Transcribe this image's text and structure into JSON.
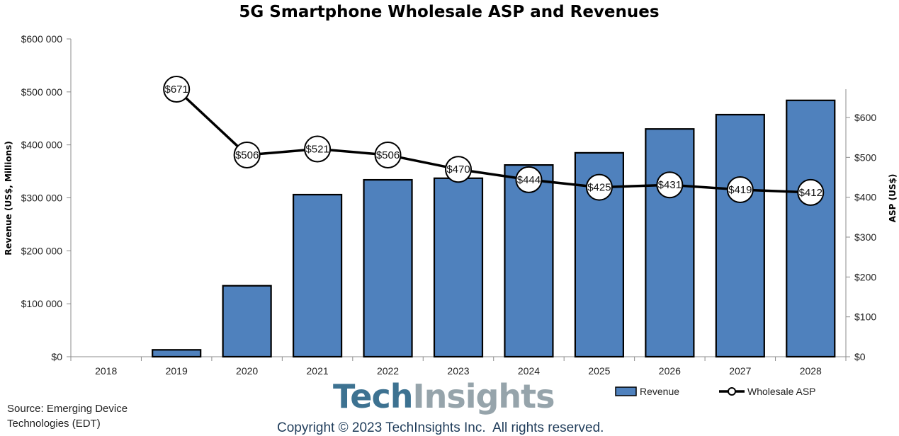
{
  "chart_data": {
    "type": "bar+line",
    "title": "5G Smartphone Wholesale ASP and Revenues",
    "categories": [
      "2018",
      "2019",
      "2020",
      "2021",
      "2022",
      "2023",
      "2024",
      "2025",
      "2026",
      "2027",
      "2028"
    ],
    "series": [
      {
        "name": "Revenue",
        "type": "bar",
        "axis": "left",
        "color": "#4f81bd",
        "values": [
          0,
          13000,
          134000,
          306000,
          334000,
          337000,
          362000,
          385000,
          430000,
          457000,
          484000
        ]
      },
      {
        "name": "Wholesale ASP",
        "type": "line",
        "axis": "right",
        "color": "#000000",
        "values": [
          null,
          671,
          506,
          521,
          506,
          470,
          444,
          425,
          431,
          419,
          412
        ],
        "data_labels": [
          "",
          "$671",
          "$506",
          "$521",
          "$506",
          "$470",
          "$444",
          "$425",
          "$431",
          "$419",
          "$412"
        ]
      }
    ],
    "y_left": {
      "label": "Revenue (US$, Millions)",
      "range": [
        0,
        600000
      ],
      "ticks": [
        0,
        100000,
        200000,
        300000,
        400000,
        500000,
        600000
      ],
      "tick_labels": [
        "$0",
        "$100 000",
        "$200 000",
        "$300 000",
        "$400 000",
        "$500 000",
        "$600 000"
      ]
    },
    "y_right": {
      "label": "ASP (US$)",
      "range": [
        0,
        600
      ],
      "ticks": [
        0,
        100,
        200,
        300,
        400,
        500,
        600
      ],
      "tick_labels": [
        "$0",
        "$100",
        "$200",
        "$300",
        "$400",
        "$500",
        "$600"
      ]
    },
    "xlabel": "",
    "grid": false,
    "legend": {
      "position": "bottom-right",
      "entries": [
        "Revenue",
        "Wholesale ASP"
      ]
    }
  },
  "footer": {
    "source_line1": "Source: Emerging Device",
    "source_line2": "Technologies (EDT)",
    "logo_part1": "Tech",
    "logo_part2": "Insights",
    "copyright": "Copyright © 2023 TechInsights Inc.  All rights reserved."
  }
}
